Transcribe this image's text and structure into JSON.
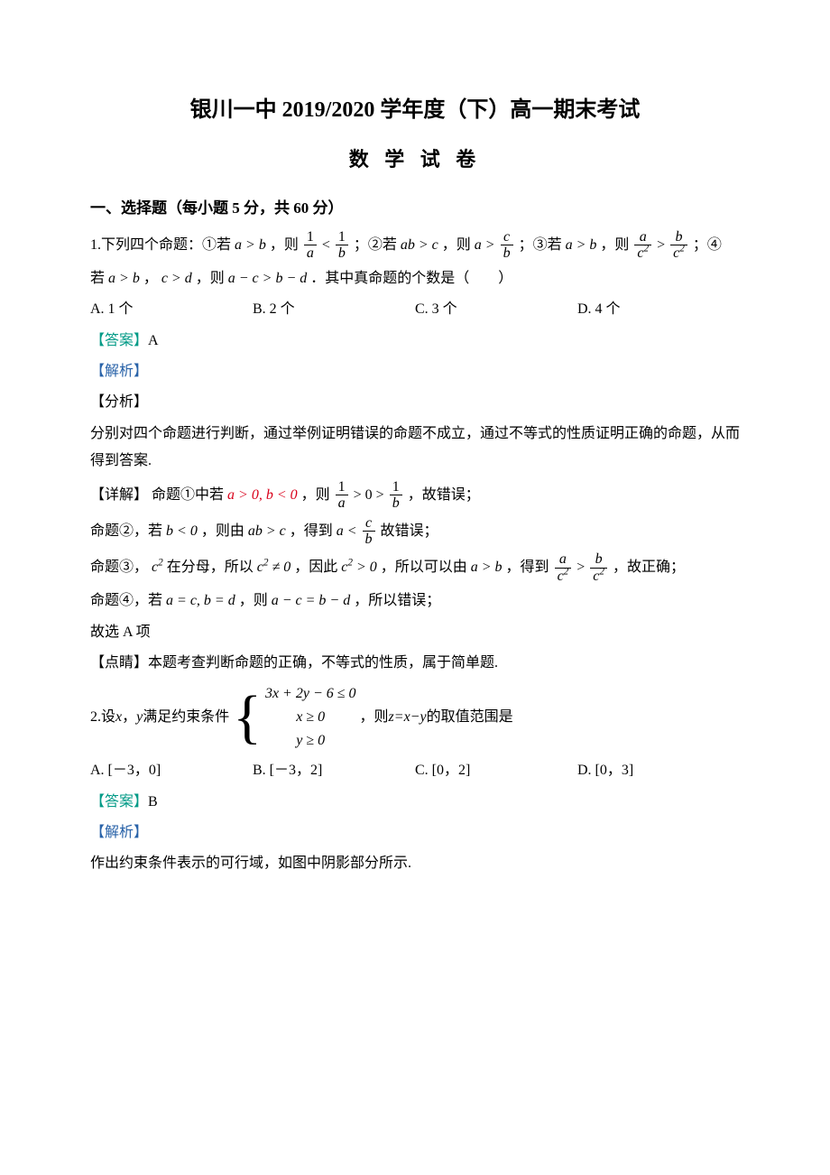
{
  "title": "银川一中 2019/2020 学年度（下）高一期末考试",
  "subtitle": "数 学 试 卷",
  "section1_heading": "一、选择题（每小题 5 分，共 60 分）",
  "q1": {
    "stem_lead": "1.下列四个命题：①若 ",
    "stem_agtb": "a > b",
    "stem_then": "，则 ",
    "stem_cond2_pre": "；②若 ",
    "stem_abgtc": "ab > c",
    "stem_cond3_pre": "；③若 ",
    "stem_cond4_pre": "；④",
    "stem_line2_pre": "若 ",
    "stem_line2_mid": "，",
    "stem_cgtd": "c > d",
    "stem_line2_then": "，则 ",
    "stem_line2_expr": "a − c > b − d",
    "stem_line2_tail": "．其中真命题的个数是（　　）",
    "optA": "A. 1 个",
    "optB": "B. 2 个",
    "optC": "C. 3 个",
    "optD": "D. 4 个",
    "answer_label": "【答案】",
    "answer_val": "A",
    "analysis_label": "【解析】",
    "fenxi_label": "【分析】",
    "fenxi_text": "分别对四个命题进行判断，通过举例证明错误的命题不成立，通过不等式的性质证明正确的命题，从而得到答案.",
    "detail_label": "【详解】",
    "detail_p1_pre": "命题①中若 ",
    "detail_p1_cond": "a > 0, b < 0",
    "detail_p1_mid": "，则 ",
    "detail_p1_tail": "，故错误；",
    "detail_p2_pre": "命题②，若 ",
    "detail_p2_blt0": "b < 0",
    "detail_p2_mid1": "，则由 ",
    "detail_p2_abgtc": "ab > c",
    "detail_p2_mid2": "，得到 ",
    "detail_p2_tail": " 故错误；",
    "detail_p3_pre": "命题③，",
    "detail_p3_c2": "c",
    "detail_p3_mid1": " 在分母，所以 ",
    "detail_p3_neq": " ≠ 0",
    "detail_p3_mid2": "，因此 ",
    "detail_p3_gt0": " > 0",
    "detail_p3_mid3": "，所以可以由 ",
    "detail_p3_agtb": "a > b",
    "detail_p3_mid4": "，得到 ",
    "detail_p3_tail": "，故正确；",
    "detail_p4_pre": "命题④，若 ",
    "detail_p4_eq": "a = c, b = d",
    "detail_p4_mid": "，则 ",
    "detail_p4_expr": "a − c = b − d",
    "detail_p4_tail": "，所以错误；",
    "detail_end": "故选 A 项",
    "dianjing_label": "【点睛】",
    "dianjing_text": "本题考查判断命题的正确，不等式的性质，属于简单题."
  },
  "q2": {
    "stem_lead": "2.设 ",
    "stem_xy": "x",
    "stem_lead2": "，",
    "stem_y": "y",
    "stem_lead3": " 满足约束条件 ",
    "sys_l1": "3x + 2y − 6 ≤ 0",
    "sys_l2": "x ≥ 0",
    "sys_l3": "y ≥ 0",
    "stem_tail_pre": "，则 ",
    "stem_z": "z=x−y",
    "stem_tail_post": " 的取值范围是",
    "optA": "A. [－3，0]",
    "optB": "B. [－3，2]",
    "optC": "C. [0，2]",
    "optD": "D. [0，3]",
    "answer_label": "【答案】",
    "answer_val": "B",
    "analysis_label": "【解析】",
    "explain": "作出约束条件表示的可行域，如图中阴影部分所示."
  },
  "frac_labels": {
    "one": "1",
    "a": "a",
    "b": "b",
    "c": "c",
    "c2": "c",
    "zero": "0",
    "gt": " > ",
    "lt": " < "
  }
}
